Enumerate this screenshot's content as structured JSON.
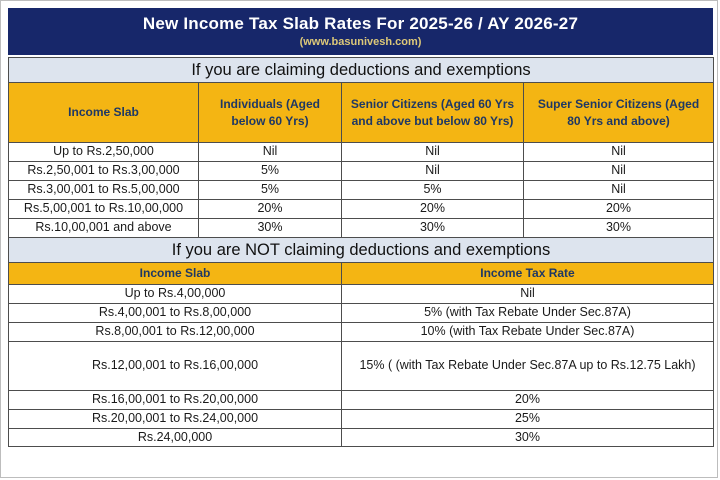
{
  "header": {
    "title": "New Income Tax Slab Rates For 2025-26 / AY 2026-27",
    "subtitle": "(www.basunivesh.com)"
  },
  "colors": {
    "navy": "#17276a",
    "gold": "#f4b513",
    "band_gray": "#dde4ee",
    "header_text": "#1f3864",
    "subtitle_gold": "#ddc878",
    "border": "#4d4d4d"
  },
  "section_deductions": {
    "band_label": "If you are claiming deductions and exemptions",
    "columns": [
      "Income Slab",
      "Individuals (Aged below 60 Yrs)",
      "Senior Citizens (Aged 60 Yrs and above but below 80 Yrs)",
      "Super Senior Citizens (Aged 80 Yrs and above)"
    ],
    "rows": [
      [
        "Up to Rs.2,50,000",
        "Nil",
        "Nil",
        "Nil"
      ],
      [
        "Rs.2,50,001 to Rs.3,00,000",
        "5%",
        "Nil",
        "Nil"
      ],
      [
        "Rs.3,00,001 to Rs.5,00,000",
        "5%",
        "5%",
        "Nil"
      ],
      [
        "Rs.5,00,001 to Rs.10,00,000",
        "20%",
        "20%",
        "20%"
      ],
      [
        "Rs.10,00,001 and above",
        "30%",
        "30%",
        "30%"
      ]
    ]
  },
  "section_no_deductions": {
    "band_label": "If you are NOT claiming deductions and exemptions",
    "columns": [
      "Income Slab",
      "Income Tax Rate"
    ],
    "rows": [
      [
        "Up to Rs.4,00,000",
        "Nil"
      ],
      [
        "Rs.4,00,001 to Rs.8,00,000",
        "5% (with Tax Rebate Under Sec.87A)"
      ],
      [
        "Rs.8,00,001 to Rs.12,00,000",
        "10% (with Tax Rebate Under Sec.87A)"
      ],
      [
        "Rs.12,00,001 to Rs.16,00,000",
        "15% ( (with Tax Rebate Under Sec.87A up to Rs.12.75 Lakh)"
      ],
      [
        "Rs.16,00,001 to Rs.20,00,000",
        "20%"
      ],
      [
        "Rs.20,00,001 to Rs.24,00,000",
        "25%"
      ],
      [
        "Rs.24,00,000",
        "30%"
      ]
    ]
  }
}
